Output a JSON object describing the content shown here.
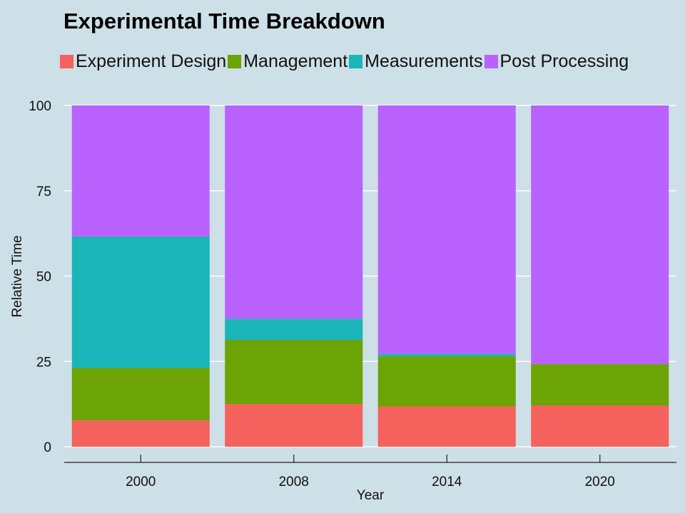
{
  "chart_data": {
    "type": "bar",
    "stacked": true,
    "title": "Experimental Time Breakdown",
    "xlabel": "Year",
    "ylabel": "Relative Time",
    "categories": [
      "2000",
      "2008",
      "2014",
      "2020"
    ],
    "yticks": [
      "0",
      "25",
      "50",
      "75",
      "100"
    ],
    "ylim": [
      0,
      100
    ],
    "legend_position": "top",
    "grid": true,
    "series": [
      {
        "name": "Experiment Design",
        "color": "#f5615c",
        "values": [
          7.7,
          12.5,
          11.8,
          12.1
        ]
      },
      {
        "name": "Management",
        "color": "#6ca305",
        "values": [
          15.4,
          18.8,
          14.7,
          12.1
        ]
      },
      {
        "name": "Measurements",
        "color": "#19b5b9",
        "values": [
          38.5,
          6.2,
          0.7,
          0
        ]
      },
      {
        "name": "Post Processing",
        "color": "#b962fe",
        "values": [
          38.4,
          62.5,
          72.8,
          75.8
        ]
      }
    ]
  }
}
